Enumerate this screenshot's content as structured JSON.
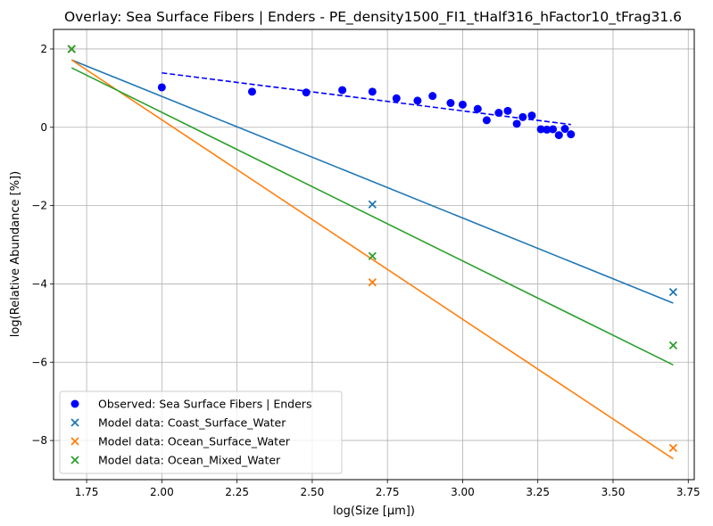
{
  "chart_data": {
    "type": "scatter",
    "title": "Overlay: Sea Surface Fibers | Enders - PE_density1500_FI1_tHalf316_hFactor10_tFrag31.6",
    "xlabel": "log(Size [µm])",
    "ylabel": "log(Relative Abundance [%])",
    "xlim": [
      1.64,
      3.77
    ],
    "ylim": [
      -9.0,
      2.5
    ],
    "xticks": [
      1.75,
      2.0,
      2.25,
      2.5,
      2.75,
      3.0,
      3.25,
      3.5,
      3.75
    ],
    "xtick_labels": [
      "1.75",
      "2.00",
      "2.25",
      "2.50",
      "2.75",
      "3.00",
      "3.25",
      "3.50",
      "3.75"
    ],
    "yticks": [
      2,
      0,
      -2,
      -4,
      -6,
      -8
    ],
    "ytick_labels": [
      "2",
      "0",
      "−2",
      "−4",
      "−6",
      "−8"
    ],
    "grid": true,
    "legend_position": "lower-left",
    "series": [
      {
        "name": "Observed: Sea Surface Fibers | Enders",
        "color": "#0000ff",
        "marker": "circle",
        "points": [
          [
            2.0,
            1.02
          ],
          [
            2.3,
            0.91
          ],
          [
            2.48,
            0.89
          ],
          [
            2.6,
            0.95
          ],
          [
            2.7,
            0.91
          ],
          [
            2.78,
            0.74
          ],
          [
            2.85,
            0.68
          ],
          [
            2.9,
            0.8
          ],
          [
            2.96,
            0.62
          ],
          [
            3.0,
            0.58
          ],
          [
            3.05,
            0.47
          ],
          [
            3.08,
            0.18
          ],
          [
            3.12,
            0.37
          ],
          [
            3.15,
            0.42
          ],
          [
            3.18,
            0.09
          ],
          [
            3.2,
            0.26
          ],
          [
            3.23,
            0.3
          ],
          [
            3.26,
            -0.05
          ],
          [
            3.28,
            -0.06
          ],
          [
            3.3,
            -0.05
          ],
          [
            3.32,
            -0.2
          ],
          [
            3.34,
            -0.04
          ],
          [
            3.36,
            -0.18
          ]
        ],
        "fit_line": {
          "style": "dashed",
          "x": [
            2.0,
            3.36
          ],
          "y": [
            1.39,
            0.07
          ]
        }
      },
      {
        "name": "Model data: Coast_Surface_Water",
        "color": "#1f77b4",
        "marker": "x",
        "points": [
          [
            1.7,
            2.0
          ],
          [
            2.7,
            -1.97
          ],
          [
            3.7,
            -4.21
          ]
        ],
        "fit_line": {
          "style": "solid",
          "x": [
            1.7,
            3.7
          ],
          "y": [
            1.72,
            -4.49
          ]
        }
      },
      {
        "name": "Model data: Ocean_Surface_Water",
        "color": "#ff7f0e",
        "marker": "x",
        "points": [
          [
            1.7,
            2.0
          ],
          [
            2.7,
            -3.96
          ],
          [
            3.7,
            -8.19
          ]
        ],
        "fit_line": {
          "style": "solid",
          "x": [
            1.7,
            3.7
          ],
          "y": [
            1.72,
            -8.47
          ]
        }
      },
      {
        "name": "Model data: Ocean_Mixed_Water",
        "color": "#2ca02c",
        "marker": "x",
        "points": [
          [
            1.7,
            2.0
          ],
          [
            2.7,
            -3.29
          ],
          [
            3.7,
            -5.57
          ]
        ],
        "fit_line": {
          "style": "solid",
          "x": [
            1.7,
            3.7
          ],
          "y": [
            1.52,
            -6.07
          ]
        }
      }
    ]
  }
}
